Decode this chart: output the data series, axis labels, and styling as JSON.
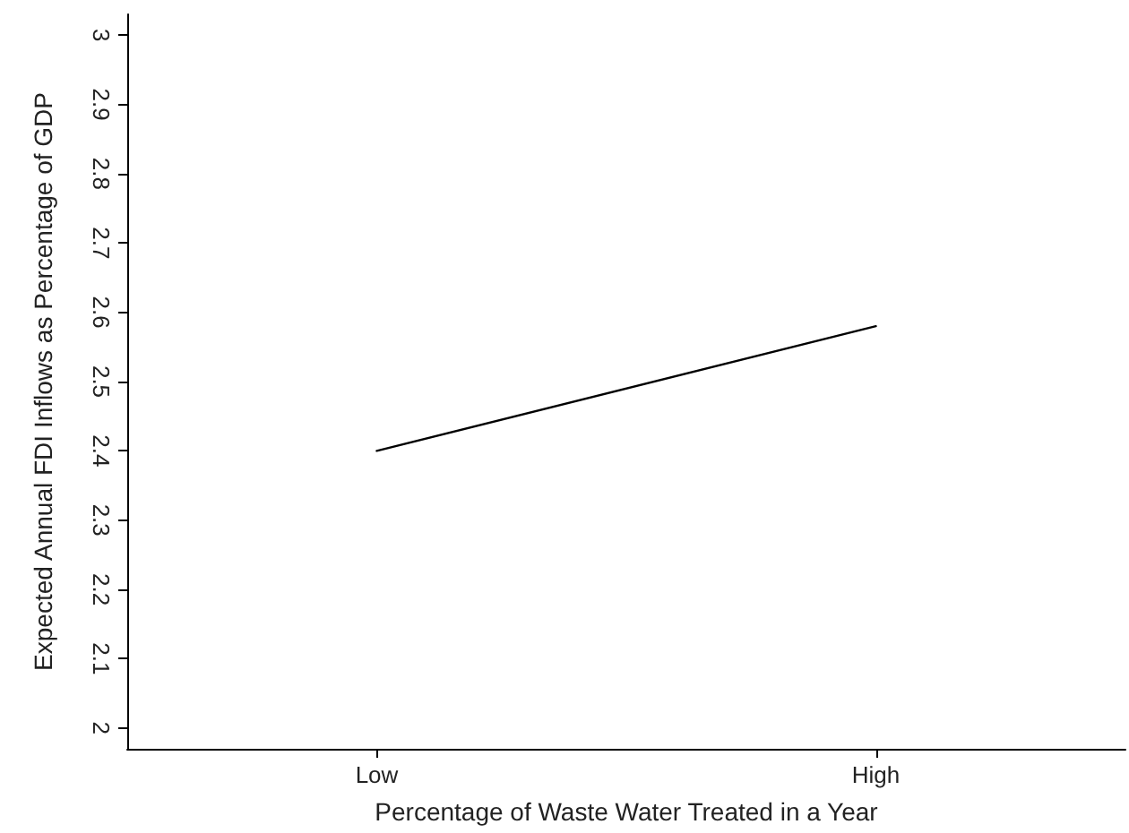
{
  "chart_data": {
    "type": "line",
    "xlabel": "Percentage of Waste Water Treated in a Year",
    "ylabel": "Expected Annual FDI Inflows as Percentage of GDP",
    "categories": [
      "Low",
      "High"
    ],
    "series": [
      {
        "color": "#000000",
        "values": [
          2.4,
          2.58
        ]
      }
    ],
    "ylim": [
      1.97,
      3.03
    ],
    "yticks": [
      2,
      2.1,
      2.2,
      2.3,
      2.4,
      2.5,
      2.6,
      2.7,
      2.8,
      2.9,
      3
    ],
    "grid": false,
    "marker": "none",
    "line_style": "solid"
  }
}
